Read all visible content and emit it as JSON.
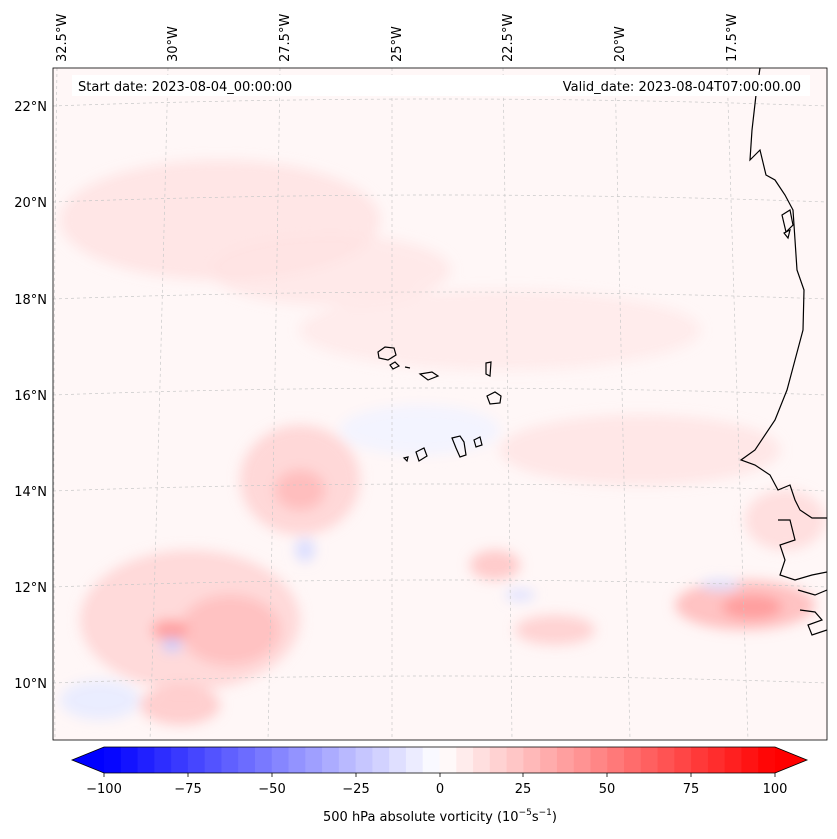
{
  "header": {
    "start_date": "Start date: 2023-08-04_00:00:00",
    "valid_date": "Valid_date: 2023-08-04T07:00:00.00"
  },
  "axes": {
    "lon_labels": [
      "32.5°W",
      "30°W",
      "27.5°W",
      "25°W",
      "22.5°W",
      "20°W",
      "17.5°W"
    ],
    "lat_labels": [
      "22°N",
      "20°N",
      "18°N",
      "16°N",
      "14°N",
      "12°N",
      "10°N"
    ]
  },
  "colorbar": {
    "ticks": [
      "−100",
      "−75",
      "−50",
      "−25",
      "0",
      "25",
      "50",
      "75",
      "100"
    ],
    "title_main": "500 hPa absolute vorticity (10",
    "title_exp1": "−5",
    "title_mid": "s",
    "title_exp2": "−1",
    "title_end": ")",
    "min_color": "#0000ff",
    "mid_color": "#ffffff",
    "max_color": "#ff0000",
    "levels": 41
  },
  "map": {
    "background": "#fff6f6",
    "coastline_color": "#000000",
    "gridline_color": "#cccccc"
  }
}
